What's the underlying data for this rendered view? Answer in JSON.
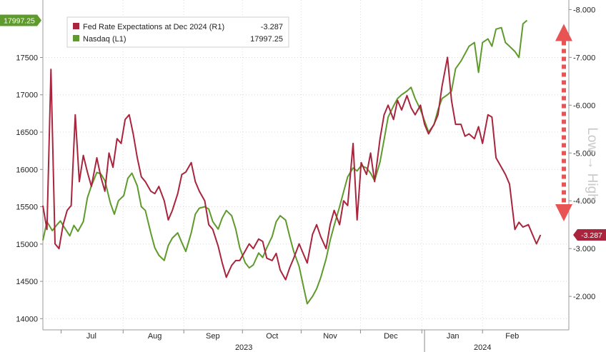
{
  "chart_data": {
    "type": "line",
    "x_axis": {
      "months": [
        "Jul",
        "Aug",
        "Sep",
        "Oct",
        "Nov",
        "Dec",
        "Jan",
        "Feb"
      ],
      "month_positions": [
        3.6,
        8.3,
        12.6,
        17.0,
        21.3,
        25.8,
        30.4,
        34.8
      ],
      "years": [
        {
          "label": "2023",
          "pos": 14.9
        },
        {
          "label": "2024",
          "pos": 32.6
        }
      ],
      "year_divider": 28.3,
      "range": [
        0,
        39
      ]
    },
    "left_axis": {
      "ticks": [
        "14000",
        "14500",
        "15000",
        "15500",
        "16000",
        "16500",
        "17000",
        "17500"
      ],
      "range": [
        13850,
        18270
      ]
    },
    "right_axis": {
      "ticks": [
        "-2.000",
        "-3.000",
        "-4.000",
        "-5.000",
        "-6.000",
        "-7.000",
        "-8.000"
      ],
      "range": [
        -1.3,
        -8.2
      ]
    },
    "annotation": {
      "label": "Low → High",
      "arrow_color": "#e85454",
      "arrow_from": -3.75,
      "arrow_to": -7.55
    },
    "legend": {
      "placement": "top-left",
      "entries": [
        {
          "name": "Fed Rate Expectations at Dec 2024 (R1)",
          "value": "-3.287",
          "color": "#a8253d"
        },
        {
          "name": "Nasdaq (L1)",
          "value": "17997.25",
          "color": "#5e9a2c"
        }
      ]
    },
    "last_value_tags": {
      "left": {
        "label": "17997.25",
        "color": "#5e9a2c"
      },
      "right": {
        "label": "-3.287",
        "color": "#a8253d"
      }
    },
    "series": [
      {
        "name": "Nasdaq (L1)",
        "axis": "left",
        "color": "#5e9a2c",
        "points": [
          [
            0.0,
            15050
          ],
          [
            0.3,
            15300
          ],
          [
            0.7,
            15180
          ],
          [
            1.0,
            15250
          ],
          [
            1.3,
            15310
          ],
          [
            1.6,
            15220
          ],
          [
            2.0,
            15110
          ],
          [
            2.3,
            15250
          ],
          [
            2.6,
            15170
          ],
          [
            3.0,
            15300
          ],
          [
            3.3,
            15620
          ],
          [
            3.6,
            15780
          ],
          [
            4.0,
            15960
          ],
          [
            4.3,
            15940
          ],
          [
            4.6,
            15850
          ],
          [
            5.0,
            15550
          ],
          [
            5.3,
            15400
          ],
          [
            5.6,
            15580
          ],
          [
            6.0,
            15650
          ],
          [
            6.3,
            15880
          ],
          [
            6.6,
            15950
          ],
          [
            7.0,
            15780
          ],
          [
            7.3,
            15500
          ],
          [
            7.6,
            15450
          ],
          [
            8.0,
            15150
          ],
          [
            8.3,
            14950
          ],
          [
            8.6,
            14850
          ],
          [
            9.0,
            14780
          ],
          [
            9.3,
            14980
          ],
          [
            9.6,
            15080
          ],
          [
            10.0,
            15150
          ],
          [
            10.3,
            15020
          ],
          [
            10.6,
            14900
          ],
          [
            11.0,
            15150
          ],
          [
            11.3,
            15400
          ],
          [
            11.6,
            15480
          ],
          [
            12.0,
            15500
          ],
          [
            12.3,
            15470
          ],
          [
            12.6,
            15300
          ],
          [
            13.0,
            15200
          ],
          [
            13.3,
            15350
          ],
          [
            13.6,
            15450
          ],
          [
            14.0,
            15380
          ],
          [
            14.3,
            15200
          ],
          [
            14.6,
            14950
          ],
          [
            15.0,
            14750
          ],
          [
            15.3,
            14680
          ],
          [
            15.6,
            14720
          ],
          [
            16.0,
            14880
          ],
          [
            16.3,
            14820
          ],
          [
            16.6,
            14950
          ],
          [
            17.0,
            15100
          ],
          [
            17.3,
            15300
          ],
          [
            17.6,
            15380
          ],
          [
            18.0,
            15320
          ],
          [
            18.3,
            15100
          ],
          [
            18.6,
            14900
          ],
          [
            19.0,
            14700
          ],
          [
            19.3,
            14450
          ],
          [
            19.6,
            14200
          ],
          [
            20.0,
            14300
          ],
          [
            20.3,
            14400
          ],
          [
            20.6,
            14550
          ],
          [
            21.0,
            14800
          ],
          [
            21.3,
            15050
          ],
          [
            21.6,
            15250
          ],
          [
            22.0,
            15500
          ],
          [
            22.3,
            15700
          ],
          [
            22.6,
            15900
          ],
          [
            23.0,
            16020
          ],
          [
            23.3,
            15980
          ],
          [
            23.6,
            16050
          ],
          [
            24.0,
            16020
          ],
          [
            24.3,
            15950
          ],
          [
            24.6,
            15850
          ],
          [
            25.0,
            16100
          ],
          [
            25.3,
            16400
          ],
          [
            25.6,
            16700
          ],
          [
            26.0,
            16850
          ],
          [
            26.3,
            16950
          ],
          [
            26.6,
            17000
          ],
          [
            27.0,
            17050
          ],
          [
            27.3,
            17100
          ],
          [
            27.6,
            16950
          ],
          [
            28.0,
            16800
          ],
          [
            28.3,
            16650
          ],
          [
            28.6,
            16500
          ],
          [
            29.0,
            16600
          ],
          [
            29.3,
            16800
          ],
          [
            29.6,
            16950
          ],
          [
            30.0,
            17000
          ],
          [
            30.3,
            17050
          ],
          [
            30.6,
            17350
          ],
          [
            31.0,
            17450
          ],
          [
            31.3,
            17550
          ],
          [
            31.6,
            17650
          ],
          [
            32.0,
            17700
          ],
          [
            32.3,
            17300
          ],
          [
            32.6,
            17700
          ],
          [
            33.0,
            17750
          ],
          [
            33.3,
            17650
          ],
          [
            33.6,
            17880
          ],
          [
            34.0,
            17900
          ],
          [
            34.3,
            17700
          ],
          [
            34.6,
            17650
          ],
          [
            35.0,
            17580
          ],
          [
            35.3,
            17500
          ],
          [
            35.6,
            17950
          ],
          [
            35.9,
            17997
          ]
        ]
      },
      {
        "name": "Fed Rate Expectations at Dec 2024 (R1)",
        "axis": "right",
        "color": "#a8253d",
        "points": [
          [
            0.0,
            -3.9
          ],
          [
            0.3,
            -3.4
          ],
          [
            0.6,
            -6.75
          ],
          [
            0.9,
            -3.1
          ],
          [
            1.2,
            -3.0
          ],
          [
            1.5,
            -3.5
          ],
          [
            1.8,
            -3.8
          ],
          [
            2.1,
            -3.9
          ],
          [
            2.4,
            -5.8
          ],
          [
            2.7,
            -4.4
          ],
          [
            3.0,
            -4.95
          ],
          [
            3.3,
            -4.6
          ],
          [
            3.6,
            -4.3
          ],
          [
            4.0,
            -4.9
          ],
          [
            4.3,
            -4.5
          ],
          [
            4.6,
            -4.2
          ],
          [
            4.9,
            -5.0
          ],
          [
            5.2,
            -4.7
          ],
          [
            5.5,
            -5.3
          ],
          [
            5.8,
            -5.2
          ],
          [
            6.1,
            -5.7
          ],
          [
            6.4,
            -5.8
          ],
          [
            6.7,
            -5.4
          ],
          [
            7.0,
            -4.9
          ],
          [
            7.3,
            -4.5
          ],
          [
            7.6,
            -4.4
          ],
          [
            8.0,
            -4.2
          ],
          [
            8.3,
            -4.15
          ],
          [
            8.6,
            -4.3
          ],
          [
            9.0,
            -4.0
          ],
          [
            9.3,
            -3.6
          ],
          [
            9.6,
            -3.8
          ],
          [
            10.0,
            -4.15
          ],
          [
            10.3,
            -4.55
          ],
          [
            10.6,
            -4.6
          ],
          [
            11.0,
            -4.8
          ],
          [
            11.3,
            -4.4
          ],
          [
            11.6,
            -4.2
          ],
          [
            12.0,
            -4.0
          ],
          [
            12.3,
            -3.5
          ],
          [
            12.6,
            -3.4
          ],
          [
            13.0,
            -3.05
          ],
          [
            13.3,
            -2.7
          ],
          [
            13.6,
            -2.4
          ],
          [
            14.0,
            -2.65
          ],
          [
            14.3,
            -2.75
          ],
          [
            14.6,
            -2.75
          ],
          [
            15.0,
            -2.95
          ],
          [
            15.3,
            -3.1
          ],
          [
            15.6,
            -3.0
          ],
          [
            16.0,
            -3.2
          ],
          [
            16.3,
            -3.15
          ],
          [
            16.6,
            -2.8
          ],
          [
            17.0,
            -2.75
          ],
          [
            17.3,
            -2.9
          ],
          [
            17.6,
            -2.55
          ],
          [
            18.0,
            -2.35
          ],
          [
            18.3,
            -2.6
          ],
          [
            18.6,
            -2.8
          ],
          [
            19.0,
            -3.1
          ],
          [
            19.3,
            -2.9
          ],
          [
            19.6,
            -2.7
          ],
          [
            20.0,
            -3.3
          ],
          [
            20.3,
            -3.5
          ],
          [
            20.6,
            -3.25
          ],
          [
            21.0,
            -3.0
          ],
          [
            21.3,
            -3.5
          ],
          [
            21.6,
            -3.8
          ],
          [
            22.0,
            -3.5
          ],
          [
            22.3,
            -4.0
          ],
          [
            22.6,
            -3.9
          ],
          [
            23.0,
            -5.2
          ],
          [
            23.3,
            -3.6
          ],
          [
            23.6,
            -4.8
          ],
          [
            24.0,
            -4.55
          ],
          [
            24.3,
            -5.0
          ],
          [
            24.6,
            -4.4
          ],
          [
            25.0,
            -5.3
          ],
          [
            25.3,
            -5.8
          ],
          [
            25.6,
            -6.0
          ],
          [
            26.0,
            -5.7
          ],
          [
            26.3,
            -6.1
          ],
          [
            26.6,
            -5.9
          ],
          [
            27.0,
            -6.2
          ],
          [
            27.3,
            -5.95
          ],
          [
            27.6,
            -5.8
          ],
          [
            28.0,
            -6.0
          ],
          [
            28.3,
            -5.6
          ],
          [
            28.6,
            -5.4
          ],
          [
            29.0,
            -5.6
          ],
          [
            29.3,
            -5.8
          ],
          [
            29.6,
            -6.4
          ],
          [
            30.0,
            -7.0
          ],
          [
            30.3,
            -6.1
          ],
          [
            30.6,
            -5.6
          ],
          [
            31.0,
            -5.6
          ],
          [
            31.3,
            -5.35
          ],
          [
            31.6,
            -5.4
          ],
          [
            32.0,
            -5.3
          ],
          [
            32.3,
            -5.55
          ],
          [
            32.6,
            -5.2
          ],
          [
            33.0,
            -5.8
          ],
          [
            33.3,
            -5.75
          ],
          [
            33.6,
            -4.9
          ],
          [
            34.0,
            -4.7
          ],
          [
            34.3,
            -4.55
          ],
          [
            34.6,
            -4.35
          ],
          [
            35.0,
            -3.4
          ],
          [
            35.3,
            -3.55
          ],
          [
            35.6,
            -3.45
          ],
          [
            36.0,
            -3.5
          ],
          [
            36.3,
            -3.3
          ],
          [
            36.6,
            -3.1
          ],
          [
            36.9,
            -3.287
          ]
        ]
      }
    ]
  }
}
